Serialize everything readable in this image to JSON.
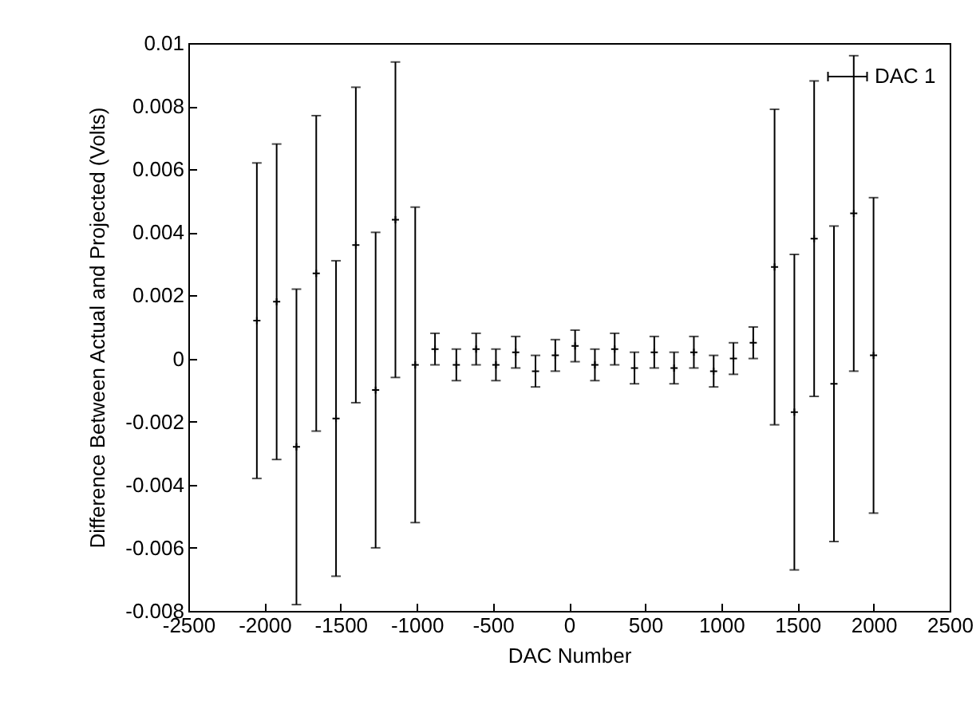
{
  "chart_data": {
    "type": "scatter",
    "xlabel": "DAC Number",
    "ylabel": "Difference Between Actual and Projected (Volts)",
    "x": [
      -2050,
      -1920,
      -1790,
      -1660,
      -1530,
      -1400,
      -1270,
      -1140,
      -1010,
      -880,
      -740,
      -610,
      -480,
      -350,
      -220,
      -90,
      40,
      170,
      300,
      430,
      560,
      690,
      820,
      950,
      1080,
      1210,
      1350,
      1480,
      1610,
      1740,
      1870,
      2000
    ],
    "series": [
      {
        "name": "DAC 1",
        "color": "#000000",
        "values": [
          0.0012,
          0.0018,
          -0.0028,
          0.0027,
          -0.0019,
          0.0036,
          -0.001,
          0.0044,
          -0.0002,
          0.0003,
          -0.0002,
          0.0003,
          -0.0002,
          0.0002,
          -0.0004,
          0.0001,
          0.0004,
          -0.0002,
          0.0003,
          -0.0003,
          0.0002,
          -0.0003,
          0.0002,
          -0.0004,
          0.0,
          0.0005,
          0.0029,
          -0.0017,
          0.0038,
          -0.0008,
          0.0046,
          0.0001
        ],
        "errors": [
          0.005,
          0.005,
          0.005,
          0.005,
          0.005,
          0.005,
          0.005,
          0.005,
          0.005,
          0.0005,
          0.0005,
          0.0005,
          0.0005,
          0.0005,
          0.0005,
          0.0005,
          0.0005,
          0.0005,
          0.0005,
          0.0005,
          0.0005,
          0.0005,
          0.0005,
          0.0005,
          0.0005,
          0.0005,
          0.005,
          0.005,
          0.005,
          0.005,
          0.005,
          0.005
        ]
      }
    ],
    "xlim": [
      -2500,
      2500
    ],
    "xticks": [
      -2500,
      -2000,
      -1500,
      -1000,
      -500,
      0,
      500,
      1000,
      1500,
      2000,
      2500
    ],
    "ylim": [
      -0.008,
      0.01
    ],
    "yticks": [
      -0.008,
      -0.006,
      -0.004,
      -0.002,
      0,
      0.002,
      0.004,
      0.006,
      0.008,
      0.01
    ],
    "legend": "top right",
    "marker": "cross"
  }
}
